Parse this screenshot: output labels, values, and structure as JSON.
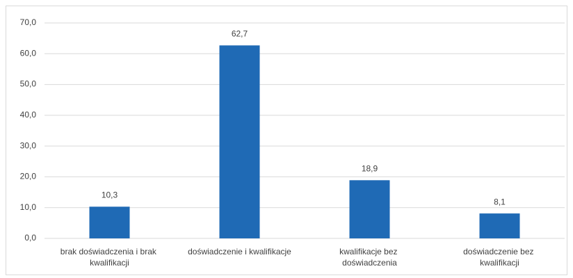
{
  "chart_data": {
    "type": "bar",
    "categories": [
      "brak doświadczenia i brak kwalifikacji",
      "doświadczenie i kwalifikacje",
      "kwalifikacje bez doświadczenia",
      "doświadczenie bez kwalifikacji"
    ],
    "values": [
      10.3,
      62.7,
      18.9,
      8.1
    ],
    "value_labels": [
      "10,3",
      "62,7",
      "18,9",
      "8,1"
    ],
    "color": "#1f6ab5",
    "ylim": [
      0,
      70
    ],
    "yticks": [
      {
        "value": 0,
        "label": "0,0"
      },
      {
        "value": 10,
        "label": "10,0"
      },
      {
        "value": 20,
        "label": "20,0"
      },
      {
        "value": 30,
        "label": "30,0"
      },
      {
        "value": 40,
        "label": "40,0"
      },
      {
        "value": 50,
        "label": "50,0"
      },
      {
        "value": 60,
        "label": "60,0"
      },
      {
        "value": 70,
        "label": "70,0"
      }
    ],
    "grid": true
  }
}
